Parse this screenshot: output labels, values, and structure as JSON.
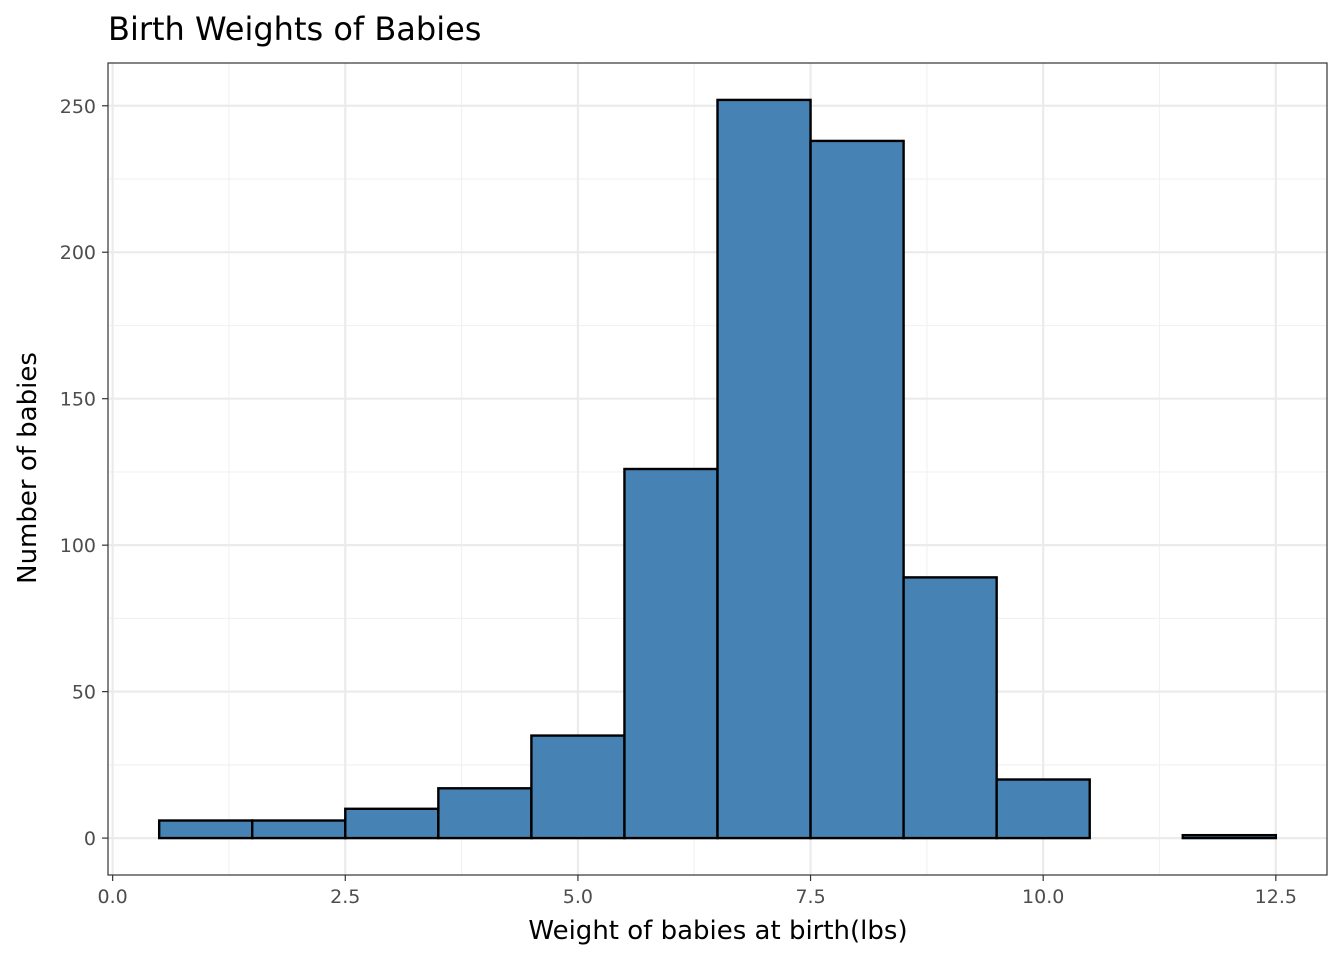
{
  "chart_data": {
    "type": "bar",
    "title": "Birth Weights of Babies",
    "xlabel": "Weight of babies at birth(lbs)",
    "ylabel": "Number of babies",
    "xlim": [
      -0.05,
      13.05
    ],
    "ylim": [
      -12.6,
      264.6
    ],
    "x_ticks": [
      0.0,
      2.5,
      5.0,
      7.5,
      10.0,
      12.5
    ],
    "x_tick_labels": [
      "0.0",
      "2.5",
      "5.0",
      "7.5",
      "10.0",
      "12.5"
    ],
    "y_ticks": [
      0,
      50,
      100,
      150,
      200,
      250
    ],
    "y_tick_labels": [
      "0",
      "50",
      "100",
      "150",
      "200",
      "250"
    ],
    "grid": true,
    "bin_width": 1,
    "bins": [
      {
        "x0": 0.5,
        "x1": 1.5,
        "count": 6
      },
      {
        "x0": 1.5,
        "x1": 2.5,
        "count": 6
      },
      {
        "x0": 2.5,
        "x1": 3.5,
        "count": 10
      },
      {
        "x0": 3.5,
        "x1": 4.5,
        "count": 17
      },
      {
        "x0": 4.5,
        "x1": 5.5,
        "count": 35
      },
      {
        "x0": 5.5,
        "x1": 6.5,
        "count": 126
      },
      {
        "x0": 6.5,
        "x1": 7.5,
        "count": 252
      },
      {
        "x0": 7.5,
        "x1": 8.5,
        "count": 238
      },
      {
        "x0": 8.5,
        "x1": 9.5,
        "count": 89
      },
      {
        "x0": 9.5,
        "x1": 10.5,
        "count": 20
      },
      {
        "x0": 10.5,
        "x1": 11.5,
        "count": 0
      },
      {
        "x0": 11.5,
        "x1": 12.5,
        "count": 1
      }
    ],
    "bar_fill": "#4682b4",
    "bar_stroke": "#000000"
  }
}
